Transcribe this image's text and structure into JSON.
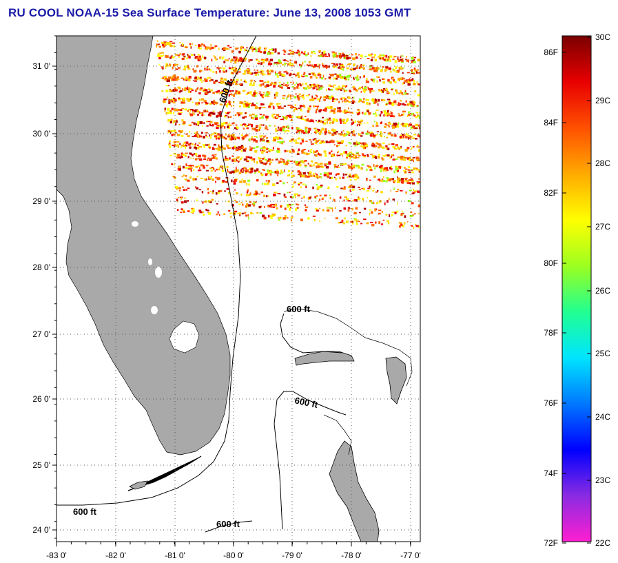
{
  "title": "RU COOL  NOAA-15  Sea Surface Temperature:  June 13, 2008 1053 GMT",
  "map": {
    "lon_ticks": [
      "-83 0'",
      "-82 0'",
      "-81 0'",
      "-80 0'",
      "-79 0'",
      "-78 0'",
      "-77 0'"
    ],
    "lat_ticks": [
      "31 0'",
      "30 0'",
      "29 0'",
      "28 0'",
      "27 0'",
      "26 0'",
      "25 0'",
      "24 0'"
    ],
    "contour_labels": [
      "600 ft",
      "600 ft",
      "600 ft",
      "600 ft",
      "600 ft"
    ],
    "colors": {
      "land": "#a9a9a9",
      "ocean": "#ffffff",
      "grid": "#555555"
    }
  },
  "colorbar": {
    "fahrenheit_labels": [
      "86F",
      "84F",
      "82F",
      "80F",
      "78F",
      "76F",
      "74F",
      "72F"
    ],
    "celsius_labels": [
      "30C",
      "29C",
      "28C",
      "27C",
      "26C",
      "25C",
      "24C",
      "23C",
      "22C"
    ],
    "stops": [
      "#ff1fd0",
      "#8a2be2",
      "#0000ff",
      "#0078ff",
      "#00e5ff",
      "#22ff90",
      "#9cff20",
      "#ffff00",
      "#ffaa00",
      "#ff5000",
      "#e80000",
      "#7a0000"
    ]
  }
}
